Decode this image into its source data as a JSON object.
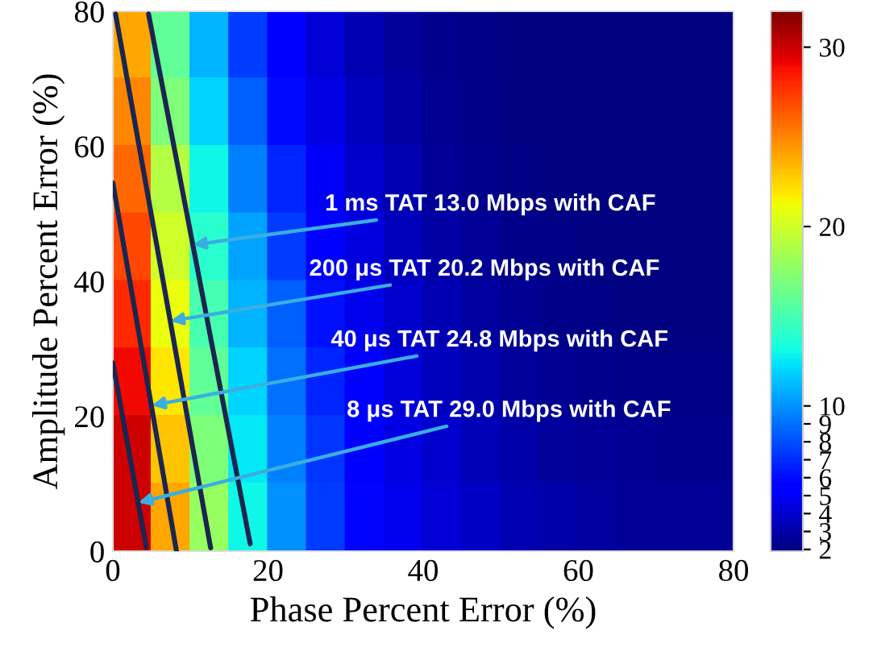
{
  "chart_data": {
    "type": "scatter",
    "xlabel": "Phase Percent Error (%)",
    "ylabel": "Amplitude Percent Error (%)",
    "marker": "square",
    "clim": [
      1.9,
      32
    ],
    "cticks": [
      2,
      3,
      4,
      5,
      6,
      7,
      8,
      9,
      10,
      20,
      30
    ],
    "xlim": [
      0,
      80
    ],
    "ylim": [
      0,
      80
    ],
    "xticks": [
      0,
      20,
      40,
      60,
      80
    ],
    "yticks": [
      0,
      20,
      40,
      60,
      80
    ],
    "x": [
      2.5,
      7.5,
      12.5,
      17.5,
      22.5,
      27.5,
      32.5,
      37.5,
      42.5,
      47.5,
      52.5,
      57.5,
      62.5,
      67.5,
      72.5,
      77.5,
      2.5,
      7.5,
      12.5,
      17.5,
      22.5,
      27.5,
      32.5,
      37.5,
      42.5,
      47.5,
      52.5,
      57.5,
      62.5,
      67.5,
      72.5,
      77.5,
      2.5,
      7.5,
      12.5,
      17.5,
      22.5,
      27.5,
      32.5,
      37.5,
      42.5,
      47.5,
      52.5,
      57.5,
      62.5,
      67.5,
      72.5,
      77.5,
      2.5,
      7.5,
      12.5,
      17.5,
      22.5,
      27.5,
      32.5,
      37.5,
      42.5,
      47.5,
      52.5,
      57.5,
      62.5,
      67.5,
      72.5,
      77.5,
      2.5,
      7.5,
      12.5,
      17.5,
      22.5,
      27.5,
      32.5,
      37.5,
      42.5,
      47.5,
      52.5,
      57.5,
      62.5,
      67.5,
      72.5,
      77.5,
      2.5,
      7.5,
      12.5,
      17.5,
      22.5,
      27.5,
      32.5,
      37.5,
      42.5,
      47.5,
      52.5,
      57.5,
      62.5,
      67.5,
      72.5,
      77.5,
      2.5,
      7.5,
      12.5,
      17.5,
      22.5,
      27.5,
      32.5,
      37.5,
      42.5,
      47.5,
      52.5,
      57.5,
      62.5,
      67.5,
      72.5,
      77.5,
      2.5,
      7.5,
      12.5,
      17.5,
      22.5,
      27.5,
      32.5,
      37.5,
      42.5,
      47.5,
      52.5,
      57.5,
      62.5,
      67.5,
      72.5,
      77.5
    ],
    "values": [
      75,
      75,
      75,
      75,
      75,
      75,
      75,
      75,
      75,
      75,
      75,
      75,
      75,
      75,
      75,
      75,
      65,
      65,
      65,
      65,
      65,
      65,
      65,
      65,
      65,
      65,
      65,
      65,
      65,
      65,
      65,
      65,
      55,
      55,
      55,
      55,
      55,
      55,
      55,
      55,
      55,
      55,
      55,
      55,
      55,
      55,
      55,
      55,
      45,
      45,
      45,
      45,
      45,
      45,
      45,
      45,
      45,
      45,
      45,
      45,
      45,
      45,
      45,
      45,
      35,
      35,
      35,
      35,
      35,
      35,
      35,
      35,
      35,
      35,
      35,
      35,
      35,
      35,
      35,
      35,
      25,
      25,
      25,
      25,
      25,
      25,
      25,
      25,
      25,
      25,
      25,
      25,
      25,
      25,
      25,
      25,
      15,
      15,
      15,
      15,
      15,
      15,
      15,
      15,
      15,
      15,
      15,
      15,
      15,
      15,
      15,
      15,
      5,
      5,
      5,
      5,
      5,
      5,
      5,
      5,
      5,
      5,
      5,
      5,
      5,
      5,
      5,
      5
    ],
    "cvalues": [
      24,
      16,
      11,
      7.5,
      5.5,
      4.2,
      3.3,
      2.7,
      2.3,
      2.1,
      2.0,
      2.0,
      2.0,
      2.0,
      2.0,
      2.0,
      25,
      17,
      12,
      8.5,
      6,
      4.6,
      3.6,
      2.9,
      2.4,
      2.2,
      2.0,
      2.0,
      2.0,
      2.0,
      2.0,
      2.0,
      26,
      19,
      13,
      9.5,
      6.8,
      5.1,
      4.0,
      3.2,
      2.6,
      2.3,
      2.1,
      2.0,
      2.0,
      2.0,
      2.0,
      2.0,
      27,
      20,
      14,
      10.5,
      7.5,
      5.6,
      4.4,
      3.5,
      2.9,
      2.5,
      2.2,
      2.1,
      2.0,
      2.0,
      2.0,
      2.0,
      28,
      21,
      15,
      11,
      8.5,
      6.2,
      4.8,
      3.9,
      3.2,
      2.8,
      2.4,
      2.2,
      2.1,
      2.0,
      2.0,
      2.0,
      29,
      22,
      16,
      12,
      9,
      6.8,
      5.2,
      4.3,
      3.6,
      3.1,
      2.7,
      2.4,
      2.3,
      2.2,
      2.1,
      2.1,
      30,
      23,
      17,
      12.5,
      9.5,
      7.2,
      5.6,
      4.6,
      3.9,
      3.4,
      3.0,
      2.7,
      2.5,
      2.4,
      2.3,
      2.3,
      30,
      24,
      18,
      13,
      10,
      7.5,
      5.8,
      4.8,
      4.2,
      3.7,
      3.3,
      3.0,
      2.8,
      2.6,
      2.5,
      2.5
    ],
    "colors": [
      "#ffa700",
      "#60ff97",
      "#00b4ff",
      "#003cff",
      "#0000ff",
      "#0000d6",
      "#0000b2",
      "#00009b",
      "#00008d",
      "#000084",
      "#000080",
      "#000080",
      "#000080",
      "#000080",
      "#000080",
      "#000080",
      "#ff8600",
      "#7dff7a",
      "#00d4ff",
      "#0060ff",
      "#0008ff",
      "#0000e3",
      "#0000bf",
      "#0000a4",
      "#000092",
      "#000089",
      "#000080",
      "#000080",
      "#000080",
      "#000080",
      "#000080",
      "#000080",
      "#ff6800",
      "#b4ff43",
      "#0ff8e7",
      "#0080ff",
      "#0024ff",
      "#0000fa",
      "#0000cd",
      "#0000b2",
      "#000096",
      "#00008d",
      "#000084",
      "#000080",
      "#000080",
      "#000080",
      "#000080",
      "#000080",
      "#ff4700",
      "#ceff29",
      "#29ffce",
      "#00a4ff",
      "#003cff",
      "#0000ff",
      "#0000df",
      "#0000bb",
      "#0000a4",
      "#000096",
      "#000089",
      "#000084",
      "#000080",
      "#000080",
      "#000080",
      "#000080",
      "#ff2900",
      "#ebff0c",
      "#46ffb1",
      "#00b4ff",
      "#0060ff",
      "#0010ff",
      "#0000ed",
      "#0000cd",
      "#0000b2",
      "#00009f",
      "#000092",
      "#000089",
      "#000084",
      "#000080",
      "#000080",
      "#000080",
      "#f10800",
      "#ffe600",
      "#60ff97",
      "#00d4ff",
      "#0070ff",
      "#0024ff",
      "#0000ff",
      "#0000da",
      "#0000bf",
      "#0000ad",
      "#00009b",
      "#000092",
      "#00008d",
      "#000089",
      "#000084",
      "#000084",
      "#cd0000",
      "#ffc400",
      "#7dff7a",
      "#02e8f4",
      "#0080ff",
      "#0034ff",
      "#0000ff",
      "#0000e3",
      "#0000cd",
      "#0000b6",
      "#0000a8",
      "#00009b",
      "#000096",
      "#000092",
      "#00008d",
      "#00008d",
      "#cd0000",
      "#ffa700",
      "#97ff60",
      "#0ff8e7",
      "#0090ff",
      "#003cff",
      "#0004ff",
      "#0000ed",
      "#0000d6",
      "#0000c4",
      "#0000b2",
      "#0000a8",
      "#00009f",
      "#000096",
      "#000096",
      "#000096"
    ],
    "series": [
      {
        "type": "line",
        "marker": "none",
        "color": "#1b2650",
        "x": [
          0,
          4.3
        ],
        "values": [
          27.9,
          0.6
        ]
      },
      {
        "type": "line",
        "marker": "none",
        "color": "#1b2650",
        "x": [
          0,
          8.2
        ],
        "values": [
          54.6,
          0
        ]
      },
      {
        "type": "line",
        "marker": "none",
        "color": "#1b2650",
        "x": [
          0.35,
          12.6
        ],
        "values": [
          79.6,
          0.5
        ]
      },
      {
        "type": "line",
        "marker": "none",
        "color": "#1b2650",
        "x": [
          4.6,
          17.7
        ],
        "values": [
          79.6,
          1.1
        ]
      }
    ],
    "annotations": [
      {
        "text": "1 ms TAT 13.0 Mbps with CAF",
        "x": 10.3,
        "y": 45.4
      },
      {
        "text": "200 μs TAT 20.2 Mbps with CAF",
        "x": 7.4,
        "y": 34.1
      },
      {
        "text": "40 μs TAT 24.8 Mbps with CAF",
        "x": 5.0,
        "y": 21.6
      },
      {
        "text": "8 μs TAT 29.0 Mbps with CAF",
        "x": 3.3,
        "y": 7.2
      }
    ]
  }
}
